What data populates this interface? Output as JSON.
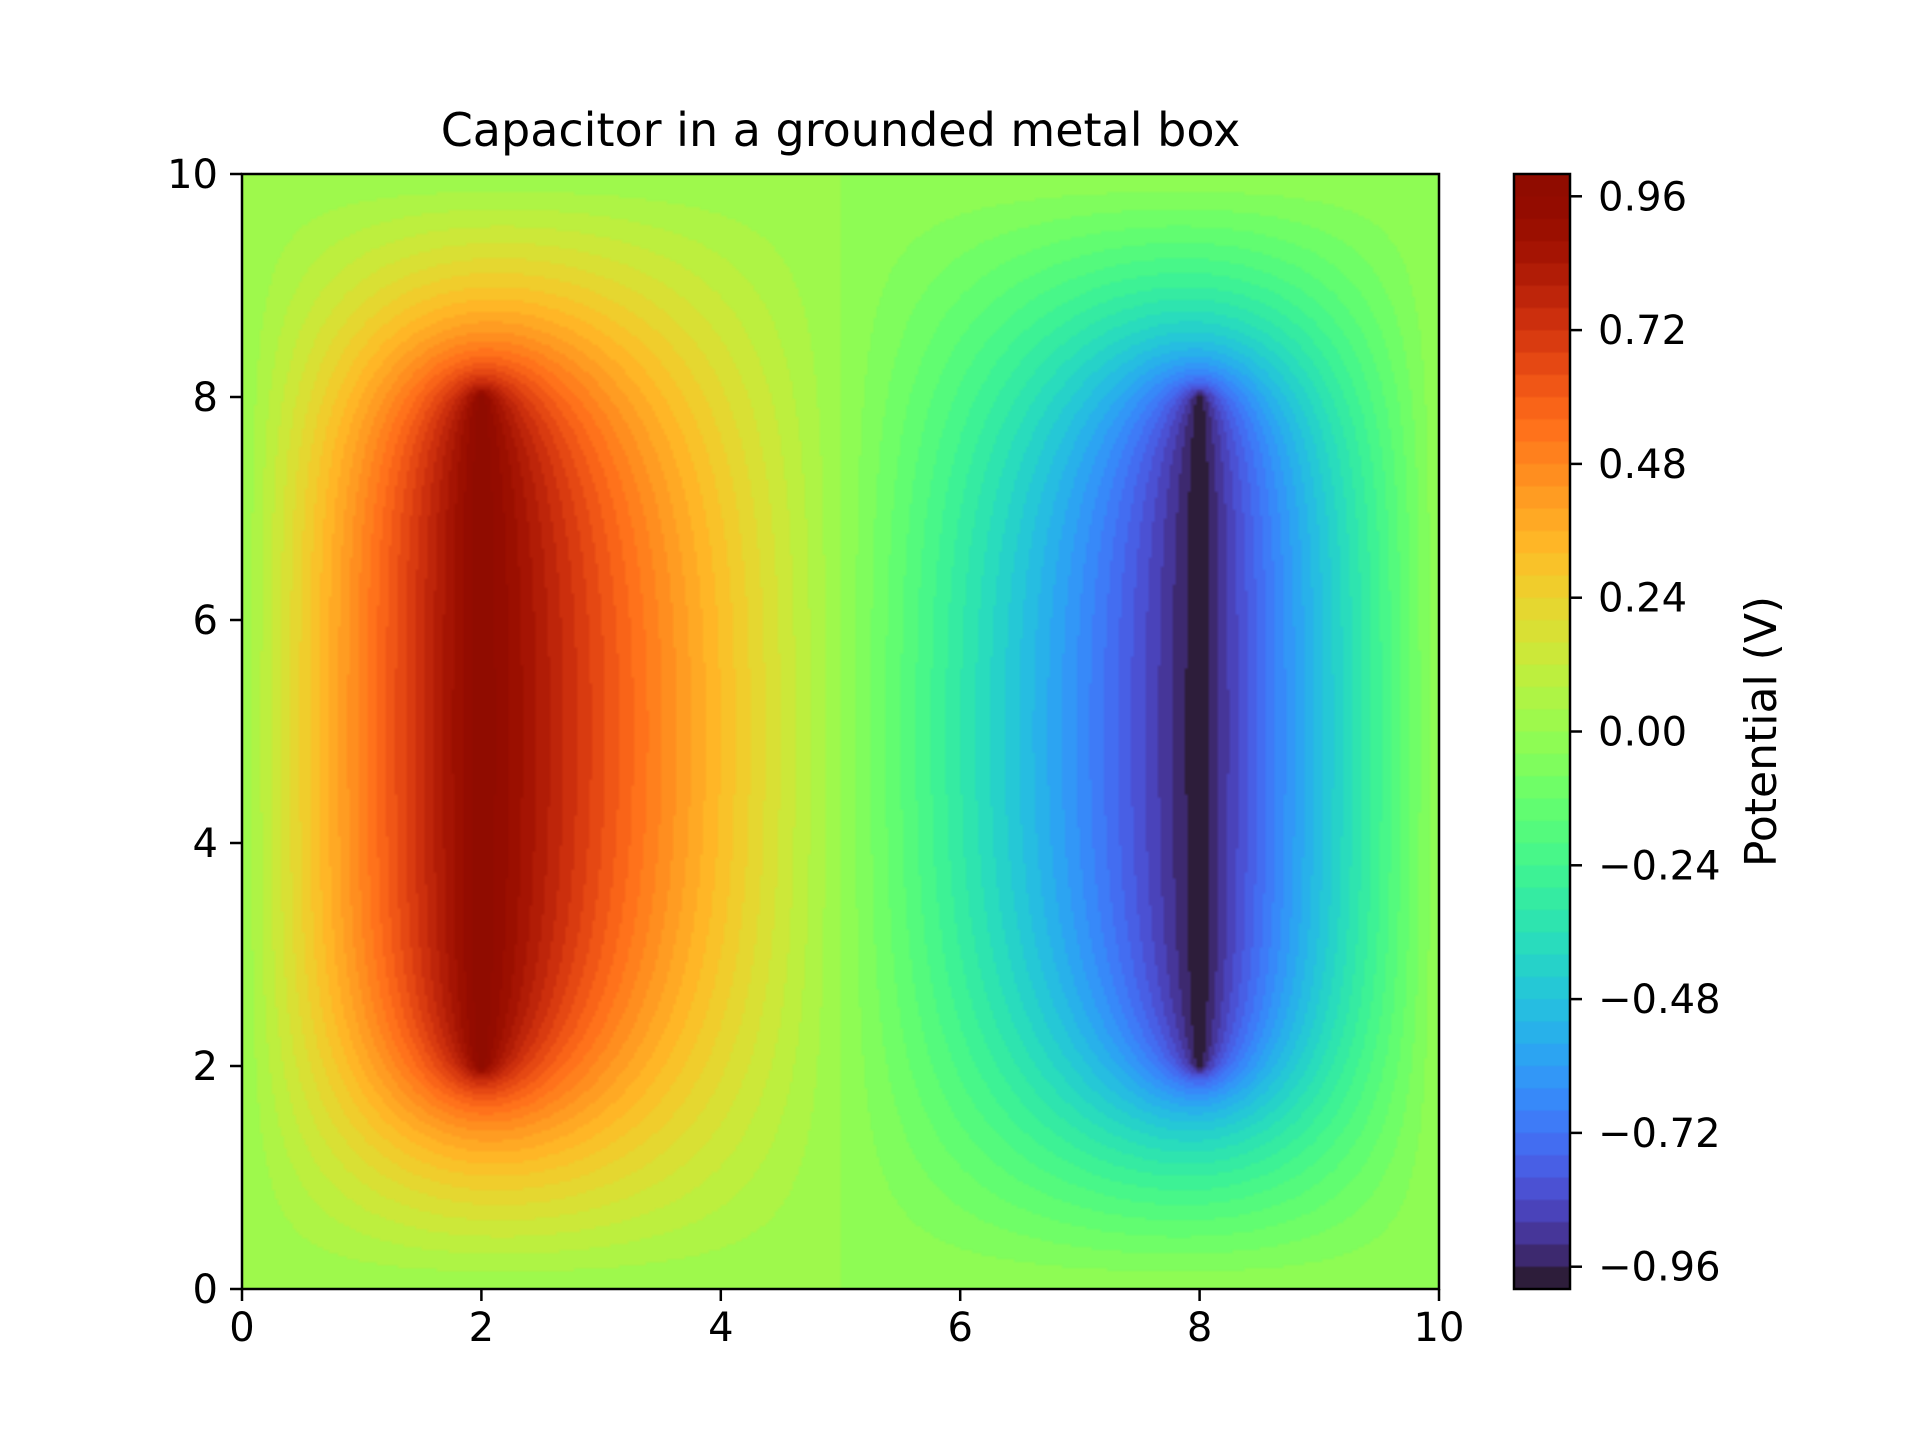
{
  "chart_data": {
    "type": "heatmap",
    "subtype": "filled-contour",
    "title": "Capacitor in a grounded metal box",
    "xlabel": "",
    "ylabel": "",
    "xlim": [
      0,
      10
    ],
    "ylim": [
      0,
      10
    ],
    "x_ticks": [
      0,
      2,
      4,
      6,
      8,
      10
    ],
    "y_ticks": [
      0,
      2,
      4,
      6,
      8,
      10
    ],
    "x_tick_labels": [
      "0",
      "2",
      "4",
      "6",
      "8",
      "10"
    ],
    "y_tick_labels": [
      "0",
      "2",
      "4",
      "6",
      "8",
      "10"
    ],
    "grid": false,
    "colormap": "turbo",
    "colorbar": {
      "label": "Potential (V)",
      "range": [
        -1.0,
        1.0
      ],
      "levels": 50,
      "ticks": [
        0.96,
        0.72,
        0.48,
        0.24,
        0.0,
        -0.24,
        -0.48,
        -0.72,
        -0.96
      ],
      "tick_labels": [
        "0.96",
        "0.72",
        "0.48",
        "0.24",
        "0.00",
        "−0.24",
        "−0.48",
        "−0.72",
        "−0.96"
      ]
    },
    "plates": [
      {
        "x": 2,
        "y_range": [
          2,
          8
        ],
        "potential": 1.0
      },
      {
        "x": 8,
        "y_range": [
          2,
          8
        ],
        "potential": -1.0
      }
    ],
    "boundary_potential": 0.0
  }
}
